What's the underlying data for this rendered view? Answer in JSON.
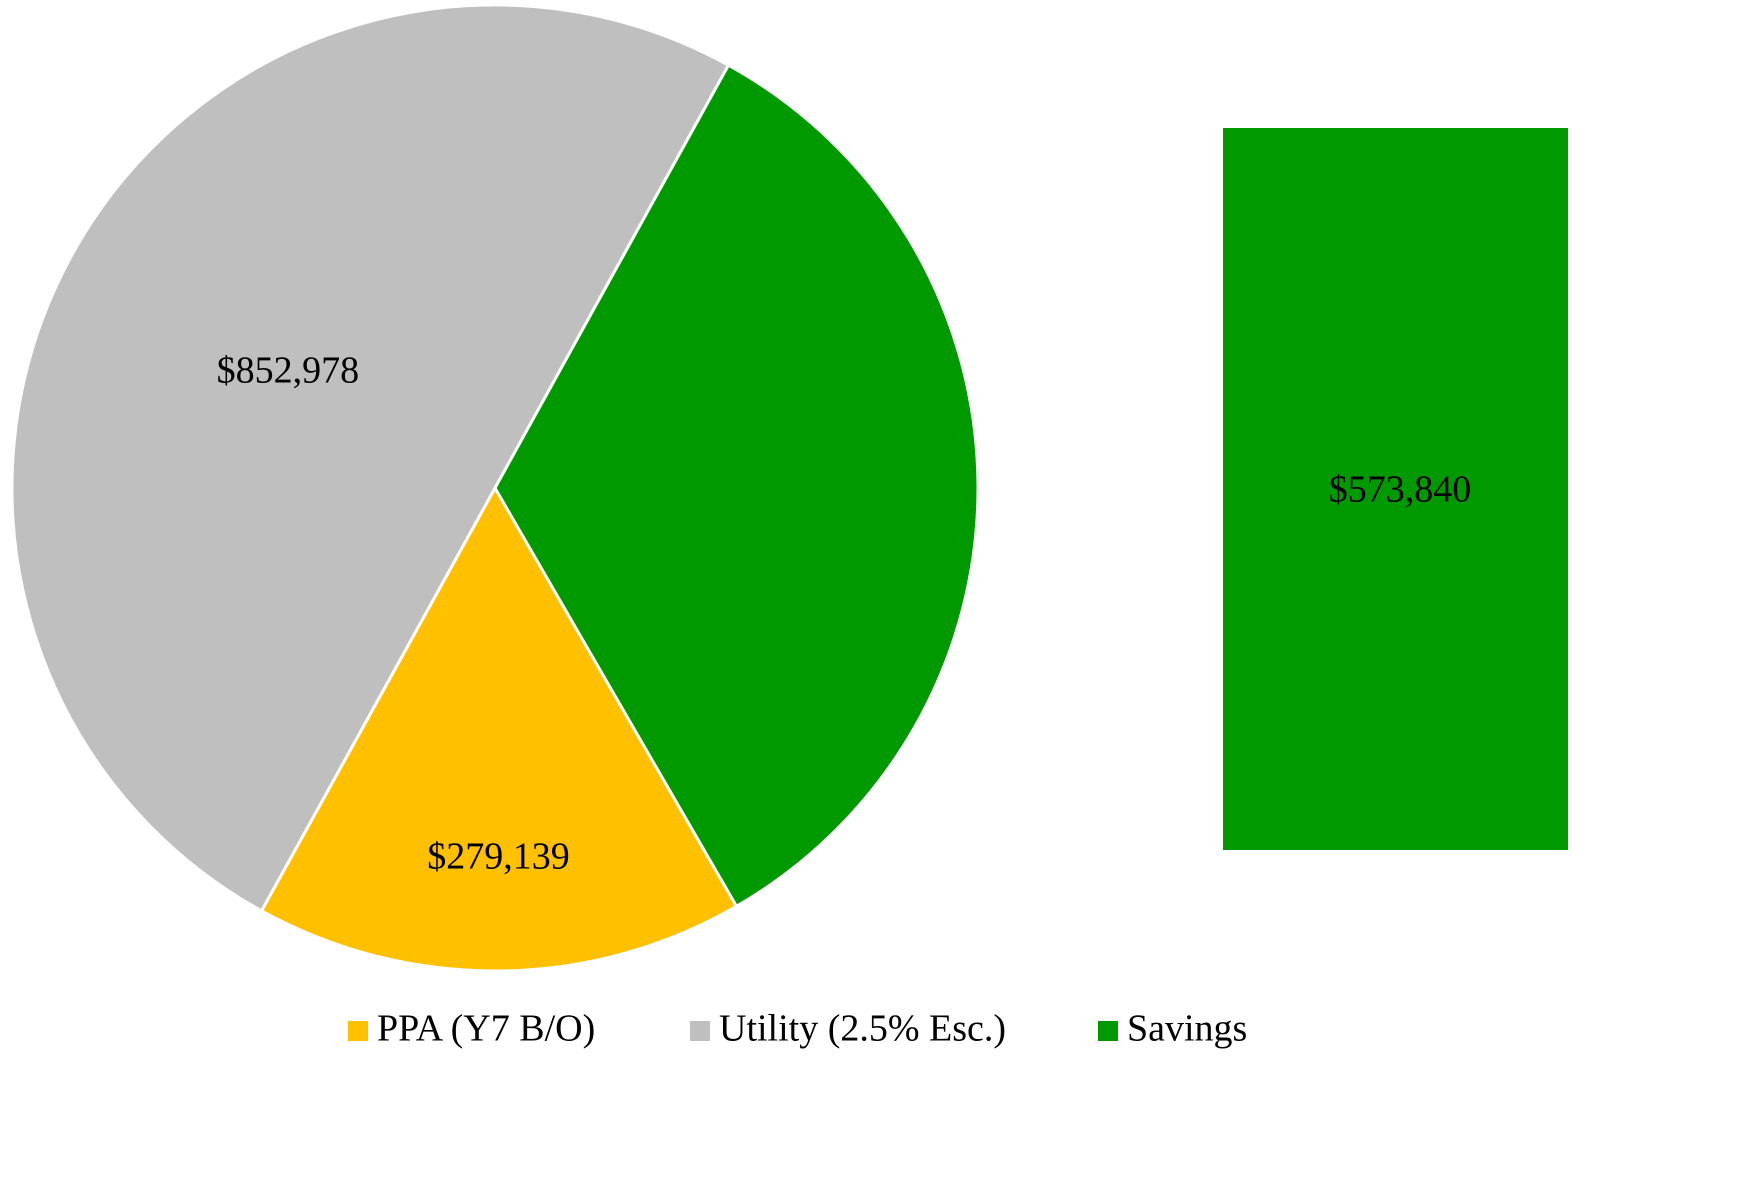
{
  "chart_data": {
    "type": "pie",
    "categories": [
      "PPA (Y7 B/O)",
      "Utility (2.5% Esc.)",
      "Savings"
    ],
    "values": [
      279139,
      852978,
      573840
    ],
    "value_labels": [
      "$279,139",
      "$852,978",
      "$573,840"
    ],
    "colors": [
      "#ffc000",
      "#bfbfbf",
      "#009900"
    ],
    "start_angle": 150,
    "legend": "bottom"
  }
}
